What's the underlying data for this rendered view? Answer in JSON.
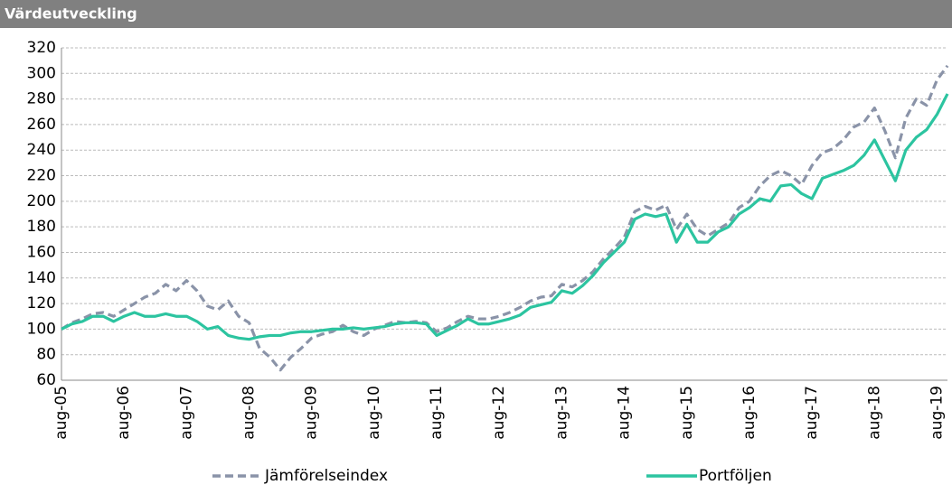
{
  "chart_data": {
    "type": "line",
    "title": "Värdeutveckling",
    "categories": [
      "aug-05",
      null,
      null,
      null,
      null,
      null,
      "aug-06",
      null,
      null,
      null,
      null,
      null,
      "aug-07",
      null,
      null,
      null,
      null,
      null,
      "aug-08",
      null,
      null,
      null,
      null,
      null,
      "aug-09",
      null,
      null,
      null,
      null,
      null,
      "aug-10",
      null,
      null,
      null,
      null,
      null,
      "aug-11",
      null,
      null,
      null,
      null,
      null,
      "aug-12",
      null,
      null,
      null,
      null,
      null,
      "aug-13",
      null,
      null,
      null,
      null,
      null,
      "aug-14",
      null,
      null,
      null,
      null,
      null,
      "aug-15",
      null,
      null,
      null,
      null,
      null,
      "aug-16",
      null,
      null,
      null,
      null,
      null,
      "aug-17",
      null,
      null,
      null,
      null,
      null,
      "aug-18",
      null,
      null,
      null,
      null,
      null,
      "aug-19",
      null
    ],
    "series": [
      {
        "name": "Jämförelseindex",
        "color": "#8a93a8",
        "dashed": true,
        "values": [
          100,
          105,
          108,
          112,
          113,
          110,
          115,
          120,
          125,
          128,
          135,
          130,
          138,
          130,
          118,
          115,
          122,
          110,
          105,
          85,
          78,
          68,
          78,
          85,
          93,
          96,
          98,
          103,
          98,
          95,
          100,
          103,
          106,
          105,
          106,
          105,
          98,
          101,
          106,
          110,
          108,
          108,
          110,
          113,
          117,
          122,
          125,
          126,
          135,
          133,
          138,
          145,
          155,
          163,
          172,
          192,
          196,
          193,
          197,
          178,
          190,
          178,
          173,
          178,
          183,
          195,
          200,
          212,
          220,
          224,
          220,
          213,
          228,
          238,
          241,
          248,
          258,
          262,
          273,
          255,
          234,
          265,
          280,
          275,
          295,
          306
        ]
      },
      {
        "name": "Portföljen",
        "color": "#2cc4a0",
        "dashed": false,
        "values": [
          100,
          104,
          106,
          110,
          110,
          106,
          110,
          113,
          110,
          110,
          112,
          110,
          110,
          106,
          100,
          102,
          95,
          93,
          92,
          94,
          95,
          95,
          97,
          98,
          98,
          99,
          100,
          100,
          101,
          100,
          101,
          102,
          104,
          105,
          105,
          104,
          95,
          99,
          103,
          108,
          104,
          104,
          106,
          108,
          111,
          117,
          119,
          121,
          130,
          128,
          134,
          142,
          152,
          160,
          168,
          186,
          190,
          188,
          190,
          168,
          182,
          168,
          168,
          176,
          180,
          190,
          195,
          202,
          200,
          212,
          213,
          206,
          202,
          218,
          221,
          224,
          228,
          236,
          248,
          232,
          216,
          240,
          250,
          256,
          268,
          284
        ]
      }
    ],
    "ylim": [
      60,
      320
    ],
    "yticks": [
      60,
      80,
      100,
      120,
      140,
      160,
      180,
      200,
      220,
      240,
      260,
      280,
      300,
      320
    ],
    "grid": true,
    "legend": "bottom"
  }
}
